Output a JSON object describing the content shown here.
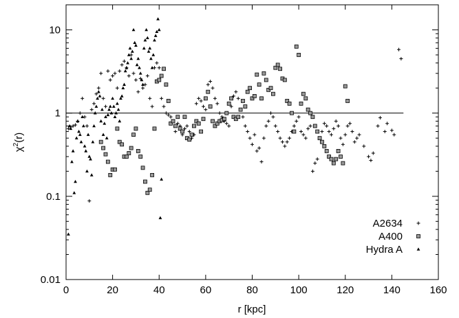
{
  "chart_data": {
    "type": "scatter",
    "xlabel": "r [kpc]",
    "ylabel_base": "χ",
    "ylabel_sup": "2",
    "ylabel_tail": "(r)",
    "xlim": [
      0,
      160
    ],
    "ylim": [
      0.01,
      20
    ],
    "yscale": "log",
    "x_ticks": [
      0,
      20,
      40,
      60,
      80,
      100,
      120,
      140,
      160
    ],
    "y_ticks": [
      0.01,
      0.1,
      1,
      10
    ],
    "y_tick_labels": [
      "0.01",
      "0.1",
      "1",
      "10"
    ],
    "reference_line_y": 1,
    "grid": false,
    "legend_position": "bottom-right",
    "series": [
      {
        "name": "A2634",
        "marker": "plus",
        "points": [
          [
            1,
            0.65
          ],
          [
            2,
            0.68
          ],
          [
            3,
            0.7
          ],
          [
            4,
            0.72
          ],
          [
            5,
            0.8
          ],
          [
            6,
            1.0
          ],
          [
            7,
            1.5
          ],
          [
            8,
            0.9
          ],
          [
            9,
            0.7
          ],
          [
            10,
            0.088
          ],
          [
            11,
            1.1
          ],
          [
            12,
            1.3
          ],
          [
            13,
            1.7
          ],
          [
            14,
            2.0
          ],
          [
            15,
            3.0
          ],
          [
            16,
            1.5
          ],
          [
            17,
            1.2
          ],
          [
            18,
            3.2
          ],
          [
            19,
            2.5
          ],
          [
            20,
            2.8
          ],
          [
            21,
            3.0
          ],
          [
            22,
            2.0
          ],
          [
            23,
            3.2
          ],
          [
            24,
            3.8
          ],
          [
            25,
            4.2
          ],
          [
            26,
            3.5
          ],
          [
            27,
            2.8
          ],
          [
            28,
            5.0
          ],
          [
            29,
            3.0
          ],
          [
            30,
            2.5
          ],
          [
            31,
            1.8
          ],
          [
            32,
            2.6
          ],
          [
            33,
            2.0
          ],
          [
            34,
            2.2
          ],
          [
            35,
            2.8
          ],
          [
            36,
            1.5
          ],
          [
            37,
            1.2
          ],
          [
            38,
            3.5
          ],
          [
            39,
            4.0
          ],
          [
            40,
            3.5
          ],
          [
            41,
            1.5
          ],
          [
            42,
            1.2
          ],
          [
            43,
            1.0
          ],
          [
            44,
            0.95
          ],
          [
            45,
            0.9
          ],
          [
            46,
            0.8
          ],
          [
            47,
            0.6
          ],
          [
            48,
            0.75
          ],
          [
            49,
            0.7
          ],
          [
            50,
            0.55
          ],
          [
            51,
            0.65
          ],
          [
            52,
            0.7
          ],
          [
            53,
            0.6
          ],
          [
            54,
            0.5
          ],
          [
            55,
            0.55
          ],
          [
            56,
            1.3
          ],
          [
            57,
            1.5
          ],
          [
            58,
            1.4
          ],
          [
            59,
            1.2
          ],
          [
            60,
            1.1
          ],
          [
            61,
            2.2
          ],
          [
            62,
            2.4
          ],
          [
            63,
            2.0
          ],
          [
            64,
            1.5
          ],
          [
            65,
            1.3
          ],
          [
            66,
            1.0
          ],
          [
            67,
            0.9
          ],
          [
            68,
            0.8
          ],
          [
            69,
            0.75
          ],
          [
            70,
            0.7
          ],
          [
            71,
            1.2
          ],
          [
            72,
            1.6
          ],
          [
            73,
            1.8
          ],
          [
            74,
            1.5
          ],
          [
            75,
            1.1
          ],
          [
            76,
            0.9
          ],
          [
            77,
            0.7
          ],
          [
            78,
            0.6
          ],
          [
            79,
            0.5
          ],
          [
            80,
            0.42
          ],
          [
            81,
            0.55
          ],
          [
            82,
            0.35
          ],
          [
            83,
            0.38
          ],
          [
            84,
            0.26
          ],
          [
            85,
            0.5
          ],
          [
            86,
            0.7
          ],
          [
            87,
            0.8
          ],
          [
            88,
            1.0
          ],
          [
            89,
            0.9
          ],
          [
            90,
            0.7
          ],
          [
            91,
            0.6
          ],
          [
            92,
            0.5
          ],
          [
            93,
            0.45
          ],
          [
            94,
            0.4
          ],
          [
            95,
            0.45
          ],
          [
            96,
            0.5
          ],
          [
            97,
            0.6
          ],
          [
            98,
            0.7
          ],
          [
            99,
            0.8
          ],
          [
            100,
            0.9
          ],
          [
            101,
            0.6
          ],
          [
            102,
            0.55
          ],
          [
            103,
            0.5
          ],
          [
            104,
            0.65
          ],
          [
            105,
            0.7
          ],
          [
            106,
            0.2
          ],
          [
            107,
            0.25
          ],
          [
            108,
            0.28
          ],
          [
            109,
            0.5
          ],
          [
            110,
            0.6
          ],
          [
            111,
            0.75
          ],
          [
            112,
            0.7
          ],
          [
            113,
            0.6
          ],
          [
            114,
            0.55
          ],
          [
            115,
            0.65
          ],
          [
            116,
            0.8
          ],
          [
            117,
            0.7
          ],
          [
            118,
            0.5
          ],
          [
            119,
            0.42
          ],
          [
            120,
            0.55
          ],
          [
            121,
            0.7
          ],
          [
            122,
            0.75
          ],
          [
            123,
            0.6
          ],
          [
            124,
            0.45
          ],
          [
            125,
            0.5
          ],
          [
            126,
            0.55
          ],
          [
            128,
            0.4
          ],
          [
            130,
            0.3
          ],
          [
            131,
            0.27
          ],
          [
            132,
            0.33
          ],
          [
            134,
            0.7
          ],
          [
            135,
            0.88
          ],
          [
            137,
            0.6
          ],
          [
            138,
            0.75
          ],
          [
            140,
            0.62
          ],
          [
            141,
            0.55
          ],
          [
            143,
            5.8
          ],
          [
            144,
            4.5
          ]
        ]
      },
      {
        "name": "A400",
        "marker": "square",
        "points": [
          [
            15,
            0.45
          ],
          [
            16,
            0.38
          ],
          [
            17,
            0.32
          ],
          [
            18,
            0.26
          ],
          [
            19,
            0.18
          ],
          [
            20,
            0.21
          ],
          [
            21,
            0.21
          ],
          [
            22,
            0.65
          ],
          [
            23,
            0.45
          ],
          [
            24,
            0.42
          ],
          [
            25,
            0.3
          ],
          [
            26,
            0.3
          ],
          [
            27,
            0.33
          ],
          [
            28,
            0.38
          ],
          [
            29,
            0.55
          ],
          [
            30,
            0.65
          ],
          [
            31,
            0.35
          ],
          [
            32,
            0.3
          ],
          [
            33,
            0.22
          ],
          [
            34,
            0.15
          ],
          [
            35,
            0.11
          ],
          [
            36,
            0.12
          ],
          [
            37,
            0.18
          ],
          [
            38,
            0.65
          ],
          [
            39,
            2.4
          ],
          [
            40,
            2.5
          ],
          [
            41,
            2.8
          ],
          [
            42,
            3.4
          ],
          [
            43,
            2.2
          ],
          [
            44,
            1.4
          ],
          [
            45,
            0.75
          ],
          [
            46,
            0.8
          ],
          [
            47,
            0.7
          ],
          [
            48,
            0.9
          ],
          [
            49,
            0.65
          ],
          [
            50,
            0.6
          ],
          [
            51,
            0.9
          ],
          [
            52,
            0.5
          ],
          [
            53,
            0.48
          ],
          [
            54,
            0.55
          ],
          [
            55,
            0.7
          ],
          [
            56,
            0.8
          ],
          [
            57,
            0.75
          ],
          [
            58,
            0.6
          ],
          [
            59,
            0.85
          ],
          [
            60,
            1.5
          ],
          [
            61,
            1.8
          ],
          [
            62,
            1.2
          ],
          [
            63,
            0.8
          ],
          [
            64,
            0.7
          ],
          [
            65,
            0.75
          ],
          [
            66,
            0.8
          ],
          [
            67,
            0.82
          ],
          [
            68,
            0.85
          ],
          [
            69,
            1.0
          ],
          [
            70,
            1.3
          ],
          [
            71,
            1.5
          ],
          [
            72,
            0.9
          ],
          [
            73,
            0.85
          ],
          [
            74,
            0.9
          ],
          [
            75,
            1.1
          ],
          [
            76,
            1.4
          ],
          [
            77,
            1.2
          ],
          [
            78,
            1.8
          ],
          [
            79,
            2.0
          ],
          [
            80,
            1.5
          ],
          [
            81,
            1.6
          ],
          [
            82,
            2.9
          ],
          [
            83,
            2.2
          ],
          [
            84,
            1.5
          ],
          [
            85,
            3.0
          ],
          [
            86,
            2.5
          ],
          [
            87,
            1.9
          ],
          [
            88,
            2.0
          ],
          [
            89,
            1.7
          ],
          [
            90,
            3.5
          ],
          [
            91,
            3.8
          ],
          [
            92,
            3.4
          ],
          [
            93,
            2.6
          ],
          [
            94,
            2.5
          ],
          [
            95,
            1.4
          ],
          [
            96,
            1.3
          ],
          [
            97,
            1.0
          ],
          [
            98,
            0.6
          ],
          [
            99,
            6.3
          ],
          [
            100,
            5.0
          ],
          [
            101,
            1.3
          ],
          [
            102,
            1.7
          ],
          [
            103,
            1.5
          ],
          [
            104,
            1.1
          ],
          [
            105,
            1.0
          ],
          [
            106,
            0.9
          ],
          [
            107,
            0.7
          ],
          [
            108,
            0.6
          ],
          [
            109,
            0.5
          ],
          [
            110,
            0.45
          ],
          [
            111,
            0.4
          ],
          [
            112,
            0.35
          ],
          [
            113,
            0.3
          ],
          [
            114,
            0.28
          ],
          [
            115,
            0.25
          ],
          [
            116,
            0.28
          ],
          [
            117,
            0.35
          ],
          [
            118,
            0.3
          ],
          [
            119,
            0.25
          ],
          [
            120,
            2.1
          ],
          [
            121,
            1.4
          ]
        ]
      },
      {
        "name": "Hydra A",
        "marker": "triangle",
        "points": [
          [
            1,
            0.035
          ],
          [
            1.5,
            0.7
          ],
          [
            2,
            0.65
          ],
          [
            2.5,
            0.26
          ],
          [
            3,
            0.35
          ],
          [
            3.5,
            0.11
          ],
          [
            4,
            0.15
          ],
          [
            4.5,
            0.5
          ],
          [
            5,
            0.8
          ],
          [
            5.5,
            0.6
          ],
          [
            6,
            0.55
          ],
          [
            6.5,
            0.45
          ],
          [
            7,
            0.9
          ],
          [
            7.5,
            0.7
          ],
          [
            8,
            0.4
          ],
          [
            8.5,
            0.35
          ],
          [
            9,
            0.2
          ],
          [
            9.5,
            0.55
          ],
          [
            10,
            0.3
          ],
          [
            10.5,
            0.28
          ],
          [
            11,
            0.18
          ],
          [
            11.5,
            0.45
          ],
          [
            12,
            0.7
          ],
          [
            12.5,
            1.0
          ],
          [
            13,
            1.2
          ],
          [
            13.5,
            1.5
          ],
          [
            14,
            1.8
          ],
          [
            14.5,
            1.6
          ],
          [
            15,
            0.8
          ],
          [
            15.5,
            1.1
          ],
          [
            16,
            0.55
          ],
          [
            16.5,
            0.75
          ],
          [
            17,
            0.9
          ],
          [
            17.5,
            0.5
          ],
          [
            18,
            0.95
          ],
          [
            18.5,
            1.1
          ],
          [
            19,
            1.2
          ],
          [
            19.5,
            1.0
          ],
          [
            20,
            1.5
          ],
          [
            20.5,
            1.2
          ],
          [
            21,
            0.9
          ],
          [
            21.5,
            1.0
          ],
          [
            22,
            1.3
          ],
          [
            22.5,
            1.1
          ],
          [
            23,
            0.8
          ],
          [
            23.5,
            1.5
          ],
          [
            24,
            1.6
          ],
          [
            24.5,
            2.0
          ],
          [
            25,
            2.2
          ],
          [
            25.5,
            3.2
          ],
          [
            26,
            3.5
          ],
          [
            26.5,
            4.0
          ],
          [
            27,
            5.0
          ],
          [
            27.5,
            6.0
          ],
          [
            28,
            4.5
          ],
          [
            28.5,
            5.5
          ],
          [
            29,
            10.0
          ],
          [
            29.5,
            7.0
          ],
          [
            30,
            6.5
          ],
          [
            30.5,
            3.8
          ],
          [
            31,
            4.5
          ],
          [
            31.5,
            3.5
          ],
          [
            32,
            3.0
          ],
          [
            32.5,
            2.5
          ],
          [
            33,
            2.2
          ],
          [
            33.5,
            6.0
          ],
          [
            34,
            7.5
          ],
          [
            34.5,
            10.0
          ],
          [
            35,
            8.0
          ],
          [
            35.5,
            5.5
          ],
          [
            36,
            6.0
          ],
          [
            36.5,
            4.5
          ],
          [
            37,
            3.5
          ],
          [
            37.5,
            5.0
          ],
          [
            38,
            7.5
          ],
          [
            38.5,
            8.5
          ],
          [
            39,
            9.5
          ],
          [
            39.5,
            13.5
          ],
          [
            40,
            10.0
          ],
          [
            40.5,
            0.055
          ],
          [
            41,
            0.16
          ]
        ]
      }
    ]
  }
}
